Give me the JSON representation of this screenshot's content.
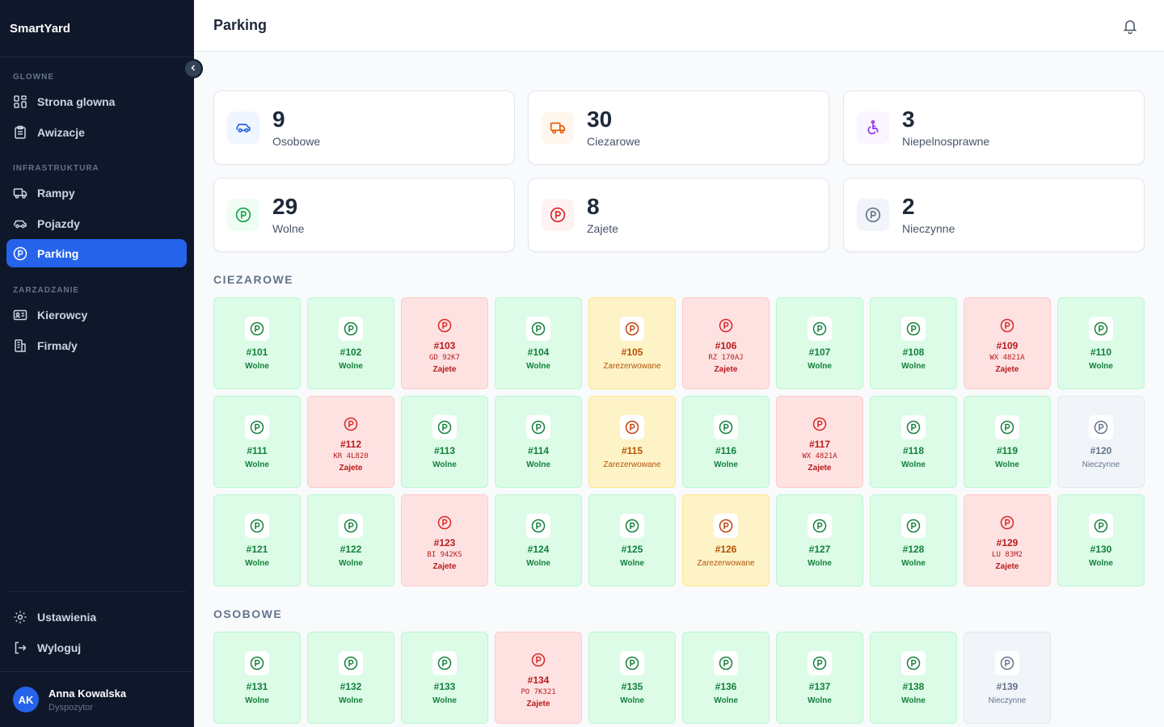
{
  "app": {
    "name": "SmartYard"
  },
  "header": {
    "title": "Parking"
  },
  "sidebar": {
    "sections": [
      {
        "label": "GLOWNE",
        "items": [
          {
            "label": "Strona glowna",
            "icon": "dashboard-icon"
          },
          {
            "label": "Awizacje",
            "icon": "clipboard-icon"
          }
        ]
      },
      {
        "label": "INFRASTRUKTURA",
        "items": [
          {
            "label": "Rampy",
            "icon": "truck-icon"
          },
          {
            "label": "Pojazdy",
            "icon": "car-icon"
          },
          {
            "label": "Parking",
            "icon": "parking-icon",
            "active": true
          }
        ]
      },
      {
        "label": "ZARZADZANIE",
        "items": [
          {
            "label": "Kierowcy",
            "icon": "id-card-icon"
          },
          {
            "label": "Firma/y",
            "icon": "building-icon"
          }
        ]
      }
    ],
    "bottom": [
      {
        "label": "Ustawienia",
        "icon": "gear-icon"
      },
      {
        "label": "Wyloguj",
        "icon": "logout-icon"
      }
    ],
    "user": {
      "initials": "AK",
      "name": "Anna Kowalska",
      "role": "Dyspozytor"
    }
  },
  "stats": [
    {
      "value": "9",
      "label": "Osobowe",
      "icon": "car-icon",
      "color": "#2563eb",
      "bg": "#eff6ff"
    },
    {
      "value": "30",
      "label": "Ciezarowe",
      "icon": "truck-icon",
      "color": "#ea580c",
      "bg": "#fff7ed"
    },
    {
      "value": "3",
      "label": "Niepelnosprawne",
      "icon": "wheelchair-icon",
      "color": "#9333ea",
      "bg": "#faf5ff"
    },
    {
      "value": "29",
      "label": "Wolne",
      "icon": "parking-icon",
      "color": "#16a34a",
      "bg": "#f0fdf4"
    },
    {
      "value": "8",
      "label": "Zajete",
      "icon": "parking-icon",
      "color": "#dc2626",
      "bg": "#fef2f2"
    },
    {
      "value": "2",
      "label": "Nieczynne",
      "icon": "parking-icon",
      "color": "#64748b",
      "bg": "#f1f5f9"
    }
  ],
  "status_labels": {
    "free": "Wolne",
    "busy": "Zajete",
    "res": "Zarezerwowane",
    "out": "Nieczynne"
  },
  "groups": [
    {
      "title": "CIEZAROWE",
      "spots": [
        {
          "no": "#101",
          "status": "free"
        },
        {
          "no": "#102",
          "status": "free"
        },
        {
          "no": "#103",
          "status": "busy",
          "plate": "GD 92K7"
        },
        {
          "no": "#104",
          "status": "free"
        },
        {
          "no": "#105",
          "status": "res"
        },
        {
          "no": "#106",
          "status": "busy",
          "plate": "RZ 170AJ"
        },
        {
          "no": "#107",
          "status": "free"
        },
        {
          "no": "#108",
          "status": "free"
        },
        {
          "no": "#109",
          "status": "busy",
          "plate": "WX 4821A"
        },
        {
          "no": "#110",
          "status": "free"
        },
        {
          "no": "#111",
          "status": "free"
        },
        {
          "no": "#112",
          "status": "busy",
          "plate": "KR 4L820"
        },
        {
          "no": "#113",
          "status": "free"
        },
        {
          "no": "#114",
          "status": "free"
        },
        {
          "no": "#115",
          "status": "res"
        },
        {
          "no": "#116",
          "status": "free"
        },
        {
          "no": "#117",
          "status": "busy",
          "plate": "WX 4821A"
        },
        {
          "no": "#118",
          "status": "free"
        },
        {
          "no": "#119",
          "status": "free"
        },
        {
          "no": "#120",
          "status": "out"
        },
        {
          "no": "#121",
          "status": "free"
        },
        {
          "no": "#122",
          "status": "free"
        },
        {
          "no": "#123",
          "status": "busy",
          "plate": "BI 942KS"
        },
        {
          "no": "#124",
          "status": "free"
        },
        {
          "no": "#125",
          "status": "free"
        },
        {
          "no": "#126",
          "status": "res"
        },
        {
          "no": "#127",
          "status": "free"
        },
        {
          "no": "#128",
          "status": "free"
        },
        {
          "no": "#129",
          "status": "busy",
          "plate": "LU 83M2"
        },
        {
          "no": "#130",
          "status": "free"
        }
      ]
    },
    {
      "title": "OSOBOWE",
      "spots": [
        {
          "no": "#131",
          "status": "free"
        },
        {
          "no": "#132",
          "status": "free"
        },
        {
          "no": "#133",
          "status": "free"
        },
        {
          "no": "#134",
          "status": "busy",
          "plate": "PO 7K321"
        },
        {
          "no": "#135",
          "status": "free"
        },
        {
          "no": "#136",
          "status": "free"
        },
        {
          "no": "#137",
          "status": "free"
        },
        {
          "no": "#138",
          "status": "free"
        },
        {
          "no": "#139",
          "status": "out"
        }
      ]
    }
  ]
}
